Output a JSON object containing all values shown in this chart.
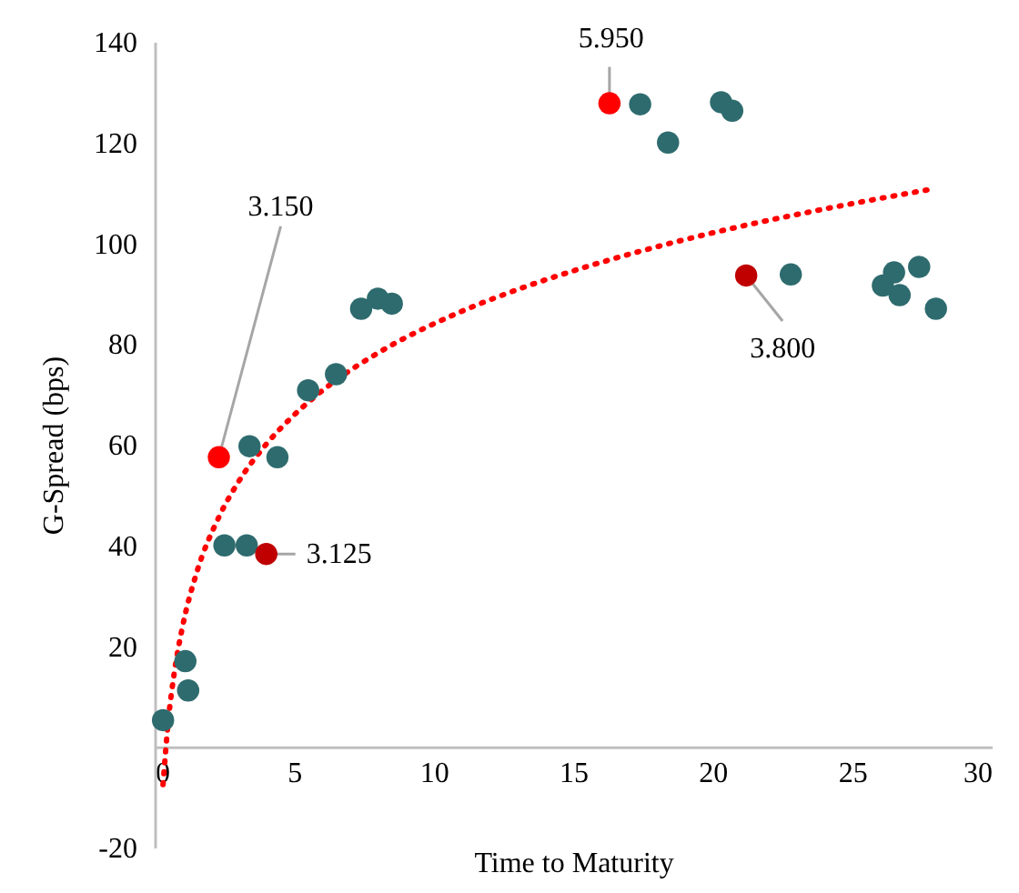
{
  "chart_data": {
    "type": "scatter",
    "xlabel": "Time to Maturity",
    "ylabel": "G-Spread (bps)",
    "xlim": [
      0,
      30
    ],
    "xticks": [
      0,
      5,
      10,
      15,
      20,
      25,
      30
    ],
    "ylim": [
      -20,
      140
    ],
    "yticks": [
      -20,
      20,
      40,
      60,
      80,
      100,
      120,
      140
    ],
    "grid": false,
    "marker": "circle",
    "series": [
      {
        "type": "scatter",
        "x": [
          0.3,
          1.1,
          1.2,
          2.5,
          3.3,
          3.4,
          4.4,
          5.5,
          6.5,
          7.4,
          8.0,
          8.5,
          17.4,
          18.4,
          20.3,
          20.7,
          22.8,
          26.1,
          26.5,
          26.7,
          27.4,
          28.0,
          16.3,
          2.3,
          4.0,
          21.2
        ],
        "values": [
          5.3,
          17,
          11.2,
          40,
          40,
          59.7,
          57.5,
          70.8,
          74,
          87,
          89,
          88,
          127.6,
          120,
          128,
          126.3,
          93.8,
          91.6,
          94.2,
          89.7,
          95.3,
          87,
          127.8,
          57.5,
          38.3,
          93.6
        ],
        "colors": [
          "#2e6b6e",
          "#2e6b6e",
          "#2e6b6e",
          "#2e6b6e",
          "#2e6b6e",
          "#2e6b6e",
          "#2e6b6e",
          "#2e6b6e",
          "#2e6b6e",
          "#2e6b6e",
          "#2e6b6e",
          "#2e6b6e",
          "#2e6b6e",
          "#2e6b6e",
          "#2e6b6e",
          "#2e6b6e",
          "#2e6b6e",
          "#2e6b6e",
          "#2e6b6e",
          "#2e6b6e",
          "#2e6b6e",
          "#2e6b6e",
          "#ff0000",
          "#ff0000",
          "#c00000",
          "#c00000"
        ]
      },
      {
        "type": "line",
        "color": "#ff0000",
        "line_style": "dotted",
        "marker": "none",
        "x": [
          0.3,
          0.5,
          0.7,
          1.0,
          1.5,
          2.3,
          3.0,
          4.0,
          5.0,
          6.5,
          8.0,
          10.8,
          13.0,
          15.4,
          18.0,
          20.8,
          24.0,
          27.8
        ],
        "values": [
          -7.5,
          5.8,
          14.6,
          23.9,
          34.5,
          45.6,
          52.6,
          60.1,
          65.9,
          72.8,
          78.2,
          86.0,
          90.8,
          95.2,
          99.3,
          103.1,
          106.8,
          110.7
        ]
      }
    ],
    "annotations": [
      {
        "text": "5.950",
        "x": 16.3,
        "y": 127.8
      },
      {
        "text": "3.150",
        "x": 2.3,
        "y": 57.5
      },
      {
        "text": "3.125",
        "x": 4.0,
        "y": 38.3
      },
      {
        "text": "3.800",
        "x": 21.2,
        "y": 93.6
      }
    ]
  }
}
